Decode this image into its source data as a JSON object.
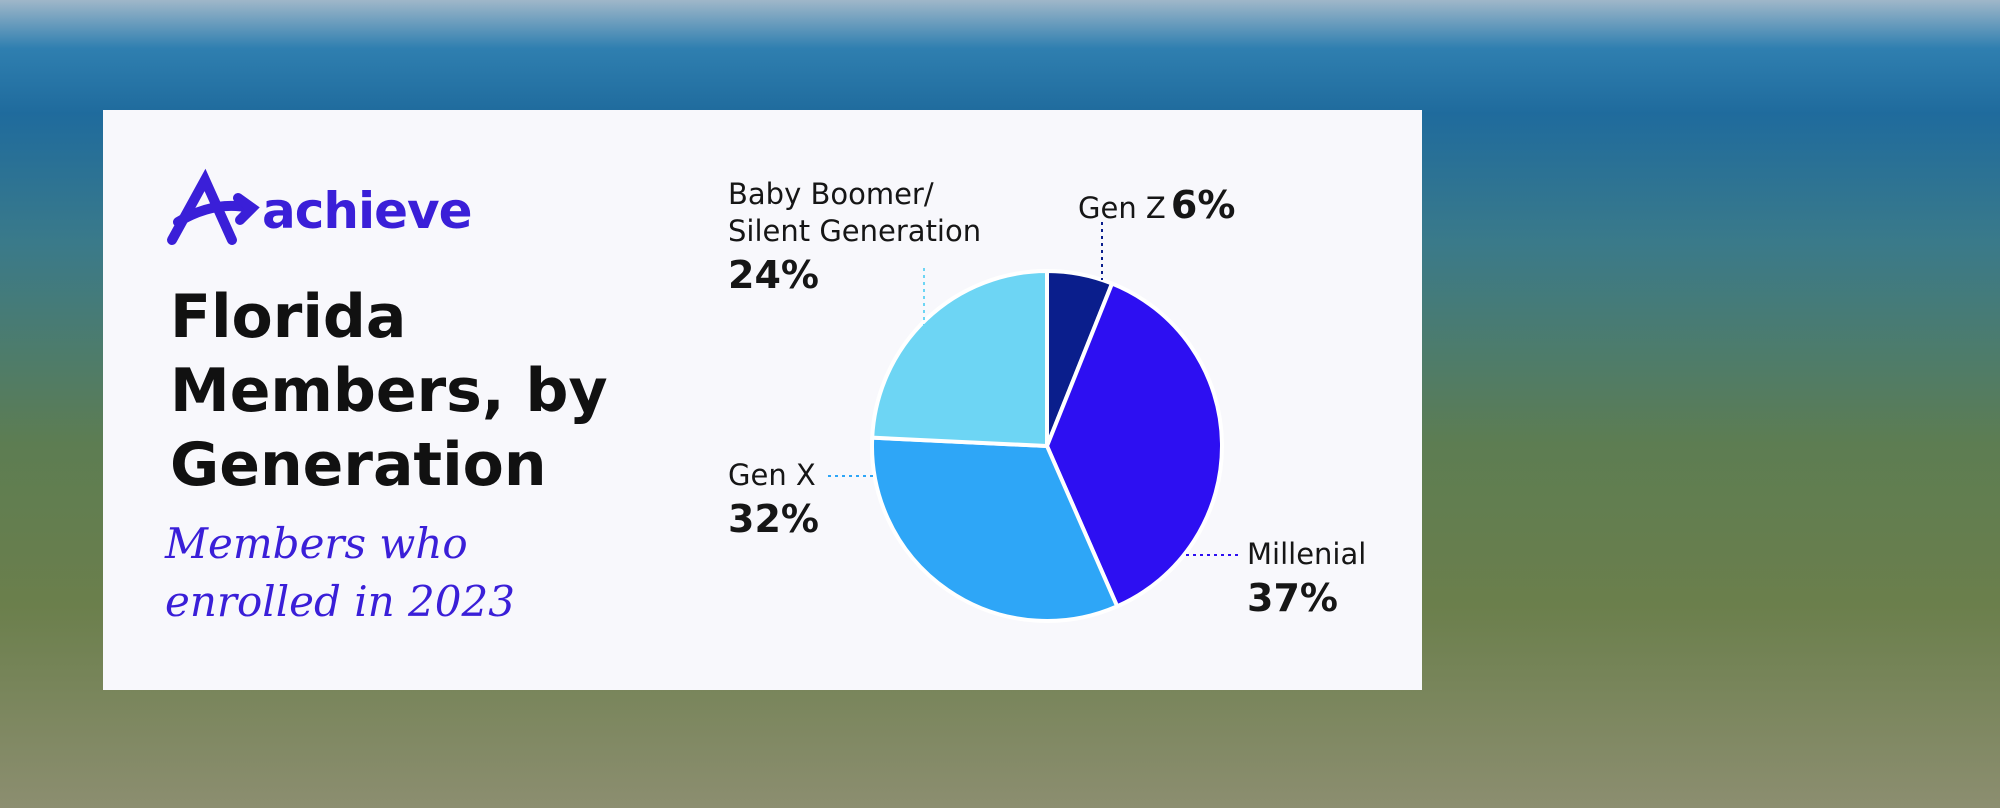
{
  "logo": "achieve",
  "chart_data": {
    "type": "pie",
    "title": "Florida Members, by Generation",
    "subtitle": "Members who enrolled in 2023",
    "series": [
      {
        "name": "Gen Z",
        "color": "#0a1e8c",
        "values": [
          6
        ],
        "value_labels": [
          "6%"
        ]
      },
      {
        "name": "Millenial",
        "color": "#2d0ff2",
        "values": [
          37
        ],
        "value_labels": [
          "37%"
        ]
      },
      {
        "name": "Gen X",
        "color": "#2ea6f7",
        "values": [
          32
        ],
        "value_labels": [
          "32%"
        ]
      },
      {
        "name": "Baby Boomer/ Silent Generation",
        "color": "#6dd5f4",
        "values": [
          24
        ],
        "value_labels": [
          "24%"
        ]
      }
    ]
  }
}
